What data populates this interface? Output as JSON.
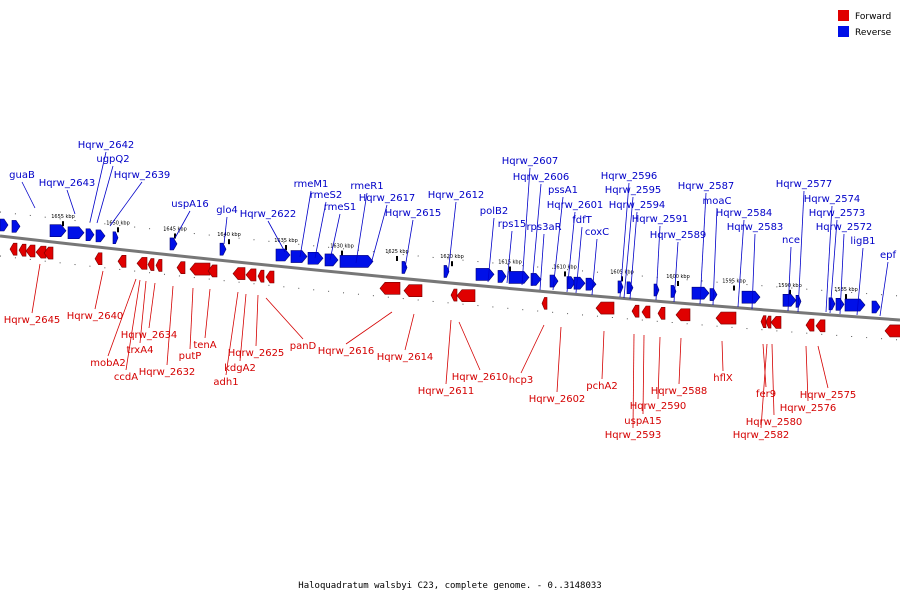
{
  "legend": [
    {
      "label": "Forward",
      "color": "#e00000"
    },
    {
      "label": "Reverse",
      "color": "#0010e8"
    }
  ],
  "caption": "Haloquadratum walsbyi C23, complete genome. - 0..3148033",
  "scale_labels": [
    "1655 kbp",
    "1650 kbp",
    "1645 kbp",
    "1640 kbp",
    "1635 kbp",
    "1630 kbp",
    "1625 kbp",
    "1620 kbp",
    "1615 kbp",
    "1610 kbp",
    "1605 kbp",
    "1600 kbp",
    "1595 kbp",
    "1590 kbp",
    "1585 kbp"
  ],
  "forward_labels": [
    "Hqrw_2645",
    "Hqrw_2640",
    "mobA2",
    "trxA4",
    "ccdA",
    "Hqrw_2634",
    "Hqrw_2632",
    "putP",
    "tenA",
    "adh1",
    "kdgA2",
    "Hqrw_2625",
    "panD",
    "Hqrw_2616",
    "Hqrw_2614",
    "Hqrw_2611",
    "Hqrw_2610",
    "hcp3",
    "Hqrw_2602",
    "pchA2",
    "uspA15",
    "Hqrw_2593",
    "Hqrw_2590",
    "Hqrw_2588",
    "hflX",
    "fer9",
    "Hqrw_2582",
    "Hqrw_2580",
    "Hqrw_2576",
    "Hqrw_2575"
  ],
  "reverse_labels": [
    "guaB",
    "Hqrw_2643",
    "Hqrw_2642",
    "ugpQ2",
    "Hqrw_2639",
    "uspA16",
    "glo4",
    "Hqrw_2622",
    "rmeM1",
    "rmeS2",
    "rmeS1",
    "rmeR1",
    "Hqrw_2617",
    "Hqrw_2615",
    "Hqrw_2612",
    "polB2",
    "rps15",
    "Hqrw_2607",
    "Hqrw_2606",
    "rps3aR",
    "pssA1",
    "Hqrw_2601",
    "fdfT",
    "coxC",
    "Hqrw_2596",
    "Hqrw_2595",
    "Hqrw_2594",
    "Hqrw_2591",
    "Hqrw_2589",
    "Hqrw_2587",
    "moaC",
    "Hqrw_2584",
    "Hqrw_2583",
    "nce",
    "Hqrw_2577",
    "Hqrw_2574",
    "Hqrw_2573",
    "Hqrw_2572",
    "ligB1",
    "epf"
  ]
}
